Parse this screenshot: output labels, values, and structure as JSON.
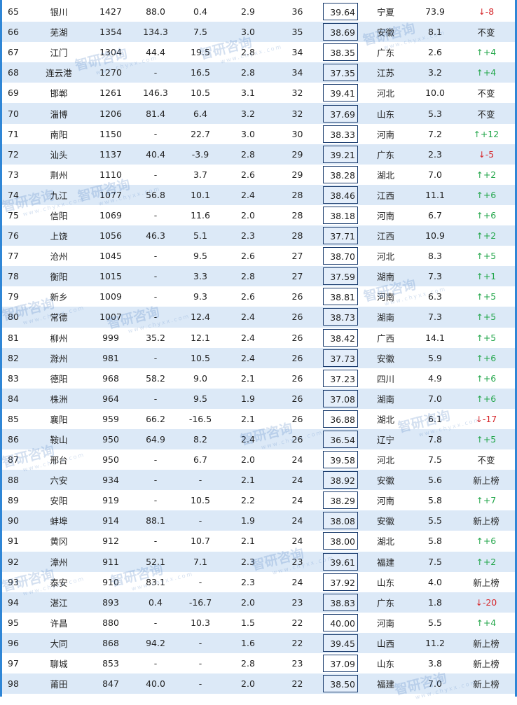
{
  "rows": [
    [
      "65",
      "银川",
      "1427",
      "88.0",
      "0.4",
      "2.9",
      "36",
      "39.64",
      "宁夏",
      "73.9",
      "down",
      "-8"
    ],
    [
      "66",
      "芜湖",
      "1354",
      "134.3",
      "7.5",
      "3.0",
      "35",
      "38.69",
      "安徽",
      "8.1",
      "flat",
      "不变"
    ],
    [
      "67",
      "江门",
      "1304",
      "44.4",
      "19.5",
      "2.8",
      "34",
      "38.35",
      "广东",
      "2.6",
      "up",
      "+4"
    ],
    [
      "68",
      "连云港",
      "1270",
      "-",
      "16.5",
      "2.8",
      "34",
      "37.35",
      "江苏",
      "3.2",
      "up",
      "+4"
    ],
    [
      "69",
      "邯郸",
      "1261",
      "146.3",
      "10.5",
      "3.1",
      "32",
      "39.41",
      "河北",
      "10.0",
      "flat",
      "不变"
    ],
    [
      "70",
      "淄博",
      "1206",
      "81.4",
      "6.4",
      "3.2",
      "32",
      "37.69",
      "山东",
      "5.3",
      "flat",
      "不变"
    ],
    [
      "71",
      "南阳",
      "1150",
      "-",
      "22.7",
      "3.0",
      "30",
      "38.33",
      "河南",
      "7.2",
      "up",
      "+12"
    ],
    [
      "72",
      "汕头",
      "1137",
      "40.4",
      "-3.9",
      "2.8",
      "29",
      "39.21",
      "广东",
      "2.3",
      "down",
      "-5"
    ],
    [
      "73",
      "荆州",
      "1110",
      "-",
      "3.7",
      "2.6",
      "29",
      "38.28",
      "湖北",
      "7.0",
      "up",
      "+2"
    ],
    [
      "74",
      "九江",
      "1077",
      "56.8",
      "10.1",
      "2.4",
      "28",
      "38.46",
      "江西",
      "11.1",
      "up",
      "+6"
    ],
    [
      "75",
      "信阳",
      "1069",
      "-",
      "11.6",
      "2.0",
      "28",
      "38.18",
      "河南",
      "6.7",
      "up",
      "+6"
    ],
    [
      "76",
      "上饶",
      "1056",
      "46.3",
      "5.1",
      "2.3",
      "28",
      "37.71",
      "江西",
      "10.9",
      "up",
      "+2"
    ],
    [
      "77",
      "沧州",
      "1045",
      "-",
      "9.5",
      "2.6",
      "27",
      "38.70",
      "河北",
      "8.3",
      "up",
      "+5"
    ],
    [
      "78",
      "衡阳",
      "1015",
      "-",
      "3.3",
      "2.8",
      "27",
      "37.59",
      "湖南",
      "7.3",
      "up",
      "+1"
    ],
    [
      "79",
      "新乡",
      "1009",
      "-",
      "9.3",
      "2.6",
      "26",
      "38.81",
      "河南",
      "6.3",
      "up",
      "+5"
    ],
    [
      "80",
      "常德",
      "1007",
      "-",
      "12.4",
      "2.4",
      "26",
      "38.73",
      "湖南",
      "7.3",
      "up",
      "+5"
    ],
    [
      "81",
      "柳州",
      "999",
      "35.2",
      "12.1",
      "2.4",
      "26",
      "38.42",
      "广西",
      "14.1",
      "up",
      "+5"
    ],
    [
      "82",
      "滁州",
      "981",
      "-",
      "10.5",
      "2.4",
      "26",
      "37.73",
      "安徽",
      "5.9",
      "up",
      "+6"
    ],
    [
      "83",
      "德阳",
      "968",
      "58.2",
      "9.0",
      "2.1",
      "26",
      "37.23",
      "四川",
      "4.9",
      "up",
      "+6"
    ],
    [
      "84",
      "株洲",
      "964",
      "-",
      "9.5",
      "1.9",
      "26",
      "37.08",
      "湖南",
      "7.0",
      "up",
      "+6"
    ],
    [
      "85",
      "襄阳",
      "959",
      "66.2",
      "-16.5",
      "2.1",
      "26",
      "36.88",
      "湖北",
      "6.1",
      "down",
      "-17"
    ],
    [
      "86",
      "鞍山",
      "950",
      "64.9",
      "8.2",
      "2.4",
      "26",
      "36.54",
      "辽宁",
      "7.8",
      "up",
      "+5"
    ],
    [
      "87",
      "邢台",
      "950",
      "-",
      "6.7",
      "2.0",
      "24",
      "39.58",
      "河北",
      "7.5",
      "flat",
      "不变"
    ],
    [
      "88",
      "六安",
      "934",
      "-",
      "-",
      "2.1",
      "24",
      "38.92",
      "安徽",
      "5.6",
      "flat",
      "新上榜"
    ],
    [
      "89",
      "安阳",
      "919",
      "-",
      "10.5",
      "2.2",
      "24",
      "38.29",
      "河南",
      "5.8",
      "up",
      "+7"
    ],
    [
      "90",
      "蚌埠",
      "914",
      "88.1",
      "-",
      "1.9",
      "24",
      "38.08",
      "安徽",
      "5.5",
      "flat",
      "新上榜"
    ],
    [
      "91",
      "黄冈",
      "912",
      "-",
      "10.7",
      "2.1",
      "24",
      "38.00",
      "湖北",
      "5.8",
      "up",
      "+6"
    ],
    [
      "92",
      "漳州",
      "911",
      "52.1",
      "7.1",
      "2.3",
      "23",
      "39.61",
      "福建",
      "7.5",
      "up",
      "+2"
    ],
    [
      "93",
      "泰安",
      "910",
      "83.1",
      "-",
      "2.3",
      "24",
      "37.92",
      "山东",
      "4.0",
      "flat",
      "新上榜"
    ],
    [
      "94",
      "湛江",
      "893",
      "0.4",
      "-16.7",
      "2.0",
      "23",
      "38.83",
      "广东",
      "1.8",
      "down",
      "-20"
    ],
    [
      "95",
      "许昌",
      "880",
      "-",
      "10.3",
      "1.5",
      "22",
      "40.00",
      "河南",
      "5.5",
      "up",
      "+4"
    ],
    [
      "96",
      "大同",
      "868",
      "94.2",
      "-",
      "1.6",
      "22",
      "39.45",
      "山西",
      "11.2",
      "flat",
      "新上榜"
    ],
    [
      "97",
      "聊城",
      "853",
      "-",
      "-",
      "2.8",
      "23",
      "37.09",
      "山东",
      "3.8",
      "flat",
      "新上榜"
    ],
    [
      "98",
      "莆田",
      "847",
      "40.0",
      "-",
      "2.0",
      "22",
      "38.50",
      "福建",
      "7.0",
      "flat",
      "新上榜"
    ]
  ],
  "arrows": {
    "up": "↑",
    "down": "↓"
  },
  "watermark": {
    "cn": "智研咨询",
    "en": "www.chyxx.com"
  },
  "colors": {
    "up": "#22a64a",
    "down": "#d6262a",
    "alt_row": "#dce9f7",
    "frame": "#2f86d6"
  }
}
